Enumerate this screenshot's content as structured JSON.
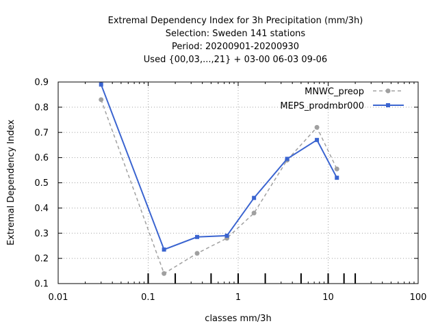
{
  "chart_data": {
    "type": "line",
    "title_lines": [
      "Extremal Dependency Index  for 3h Precipitation (mm/3h)",
      "Selection: Sweden    141 stations",
      "Period: 20200901-20200930",
      "Used {00,03,...,21} + 03-00 06-03 09-06"
    ],
    "xlabel": "classes mm/3h",
    "ylabel": "Extremal Dependency Index",
    "xscale": "log",
    "xlim": [
      0.01,
      100
    ],
    "ylim": [
      0.1,
      0.9
    ],
    "xticks": [
      "0.01",
      "0.1",
      "1",
      "10",
      "100"
    ],
    "yticks": [
      "0.1",
      "0.2",
      "0.3",
      "0.4",
      "0.5",
      "0.6",
      "0.7",
      "0.8",
      "0.9"
    ],
    "grid": true,
    "legend_position": "top-right",
    "class_thresholds": [
      0.1,
      0.2,
      0.5,
      1,
      2,
      5,
      10,
      15,
      20
    ],
    "x": [
      0.03,
      0.15,
      0.35,
      0.75,
      1.5,
      3.5,
      7.5,
      12.5
    ],
    "series": [
      {
        "name": "MNWC_preop",
        "color": "#a0a0a0",
        "dash": true,
        "values": [
          0.83,
          0.14,
          0.22,
          0.28,
          0.38,
          0.59,
          0.72,
          0.555
        ]
      },
      {
        "name": "MEPS_prodmbr000",
        "color": "#3a64d0",
        "dash": false,
        "values": [
          0.89,
          0.235,
          0.285,
          0.29,
          0.44,
          0.595,
          0.67,
          0.52
        ]
      }
    ]
  }
}
